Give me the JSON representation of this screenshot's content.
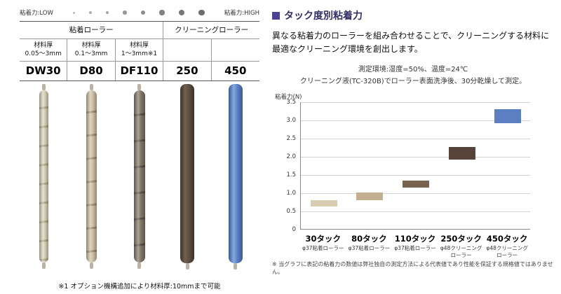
{
  "left": {
    "scale": {
      "low_label": "粘着力:LOW",
      "high_label": "粘着力:HIGH",
      "dot_count": 8
    },
    "table": {
      "groups": [
        {
          "label": "粘着ローラー",
          "span": 3
        },
        {
          "label": "クリーニングローラー",
          "span": 2
        }
      ],
      "columns": [
        {
          "thickness_title": "材料厚",
          "thickness": "0.05〜3mm",
          "model": "DW30"
        },
        {
          "thickness_title": "材料厚",
          "thickness": "0.1〜3mm",
          "model": "D80"
        },
        {
          "thickness_title": "材料厚",
          "thickness": "1〜3mm※1",
          "model": "DF110"
        },
        {
          "thickness_title": "",
          "thickness": "",
          "model": "250"
        },
        {
          "thickness_title": "",
          "thickness": "",
          "model": "450"
        }
      ]
    },
    "rollers": [
      {
        "model": "DW30",
        "type": "segmented",
        "color": "#d9d0b7",
        "dark": "#b4a88b",
        "light": "#e8e1cc",
        "width": 13,
        "seg": 24
      },
      {
        "model": "D80",
        "type": "segmented",
        "color": "#cfc3a6",
        "dark": "#a2947a",
        "light": "#e0d6bf",
        "width": 15,
        "seg": 30
      },
      {
        "model": "DF110",
        "type": "segmented",
        "color": "#847968",
        "dark": "#5f5549",
        "light": "#9a8f7e",
        "width": 16,
        "seg": 34
      },
      {
        "model": "250",
        "type": "solid",
        "color": "#5d4e41",
        "dark": "#3e332a",
        "light": "#72614f",
        "width": 20,
        "seg": 0
      },
      {
        "model": "450",
        "type": "solid",
        "color": "#5b82c4",
        "dark": "#3a5a92",
        "light": "#86a9dd",
        "width": 20,
        "seg": 0
      }
    ],
    "note": "※1 オプション機構追加により材料厚:10mmまで可能"
  },
  "right": {
    "heading": "タック度別粘着力",
    "accent_color": "#4c4293",
    "heading_text_color": "#332f63",
    "description": "異なる粘着力のローラーを組み合わせることで、クリーニングする材料に最適なクリーニング環境を創出します。",
    "conditions_line1": "測定環境:湿度=50%、温度=24℃",
    "conditions_line2": "クリーニング液(TC-320B)でローラー表面洗浄後、30分乾燥して測定。",
    "footnote": "※ 当グラフに表記の粘着力の数値は弊社独自の測定方法による代表値であり性能を保証する規格値ではありません。"
  },
  "chart_data": {
    "type": "bar",
    "title": "",
    "xlabel": "",
    "ylabel": "粘着力(N)",
    "ylim": [
      0,
      3.5
    ],
    "ytick_step": 0.5,
    "grid": true,
    "legend": "none",
    "categories": [
      "30タック",
      "80タック",
      "110タック",
      "250タック",
      "450タック"
    ],
    "sublabels": [
      "φ37粘着ローラー",
      "φ37粘着ローラー",
      "φ37粘着ローラー",
      "φ48クリーニング\nローラー",
      "φ48クリーニング\nローラー"
    ],
    "bars": [
      {
        "label": "30タック",
        "min": 0.62,
        "max": 0.8,
        "value": 0.8,
        "color": "#d9cdb1"
      },
      {
        "label": "80タック",
        "min": 0.8,
        "max": 1.0,
        "value": 1.0,
        "color": "#c2b091"
      },
      {
        "label": "110タック",
        "min": 1.13,
        "max": 1.33,
        "value": 1.33,
        "color": "#77634f"
      },
      {
        "label": "250タック",
        "min": 1.9,
        "max": 2.25,
        "value": 2.25,
        "color": "#56433a"
      },
      {
        "label": "450タック",
        "min": 2.9,
        "max": 3.3,
        "value": 3.3,
        "color": "#5b7fc0"
      }
    ]
  }
}
